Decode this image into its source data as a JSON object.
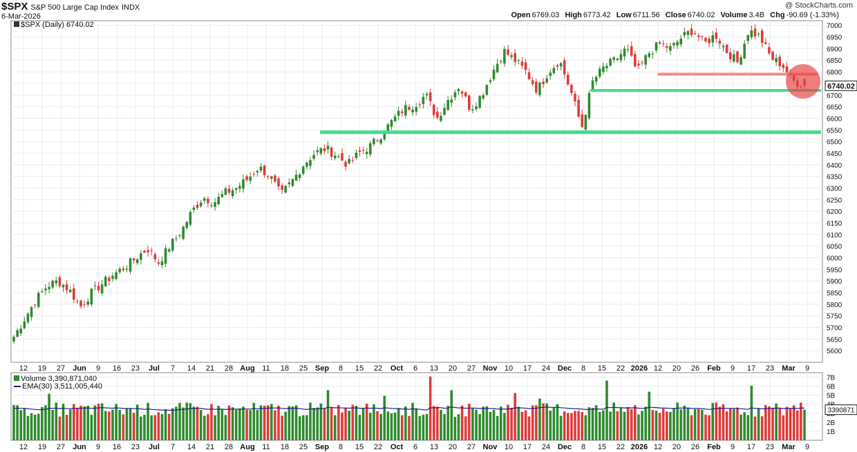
{
  "header": {
    "symbol": "$SPX",
    "name": "S&P 500 Large Cap Index",
    "exchange": "INDX",
    "date": "6-Mar-2026",
    "brand": "@ StockCharts.com",
    "open_label": "Open",
    "open": "6769.03",
    "high_label": "High",
    "high": "6773.42",
    "low_label": "Low",
    "low": "6711.56",
    "close_label": "Close",
    "close": "6740.02",
    "volume_label": "Volume",
    "volume": "3.4B",
    "chg_label": "Chg",
    "chg": "-90.69 (-1.33%)"
  },
  "price_legend": "$SPX (Daily) 6740.02",
  "price_tag": "6740.02",
  "volume_legend": "Volume 3,390,871,040",
  "ema_legend": "EMA(30) 3,511,005,440",
  "volume_tag": "3390871",
  "colors": {
    "up": "#2f8a2f",
    "down": "#e03a3a",
    "support": "#3de08a",
    "resistance": "#f08a8a",
    "ema": "#1a1a8c"
  },
  "chart_data": [
    {
      "type": "candlestick",
      "ylim": [
        5550,
        7020
      ],
      "yticks": [
        5600,
        5650,
        5700,
        5750,
        5800,
        5850,
        5900,
        5950,
        6000,
        6050,
        6100,
        6150,
        6200,
        6250,
        6300,
        6350,
        6400,
        6450,
        6500,
        6550,
        6600,
        6650,
        6700,
        6750,
        6800,
        6850,
        6900,
        6950,
        7000
      ],
      "xticks": [
        "12",
        "19",
        "27",
        "Jun",
        "9",
        "16",
        "23",
        "Jul",
        "7",
        "14",
        "21",
        "28",
        "Aug",
        "11",
        "18",
        "25",
        "Sep",
        "8",
        "15",
        "22",
        "Oct",
        "6",
        "13",
        "20",
        "27",
        "Nov",
        "10",
        "17",
        "24",
        "Dec",
        "8",
        "15",
        "22",
        "2026",
        "12",
        "20",
        "26",
        "Feb",
        "9",
        "17",
        "23",
        "Mar",
        "9"
      ],
      "close_path": [
        5660,
        5740,
        5820,
        5880,
        5900,
        5860,
        5790,
        5850,
        5890,
        5930,
        5960,
        6000,
        6040,
        5980,
        6050,
        6110,
        6200,
        6260,
        6240,
        6280,
        6300,
        6340,
        6390,
        6350,
        6270,
        6330,
        6400,
        6450,
        6470,
        6440,
        6400,
        6450,
        6480,
        6530,
        6590,
        6640,
        6660,
        6700,
        6600,
        6680,
        6740,
        6640,
        6700,
        6800,
        6890,
        6850,
        6800,
        6720,
        6800,
        6850,
        6720,
        6560,
        6760,
        6820,
        6850,
        6900,
        6800,
        6880,
        6920,
        6900,
        6950,
        6980,
        6920,
        6960,
        6890,
        6840,
        6980,
        6950,
        6860,
        6830,
        6760,
        6740
      ],
      "annotations": [
        {
          "type": "support",
          "price": 6540
        },
        {
          "type": "support",
          "price": 6720
        },
        {
          "type": "resistance",
          "price": 6790
        }
      ]
    },
    {
      "type": "bar",
      "series": [
        {
          "name": "Volume"
        },
        {
          "name": "EMA(30)"
        }
      ],
      "yticks": [
        "1B",
        "2B",
        "3B",
        "4B",
        "5B",
        "6B",
        "7B"
      ],
      "ylim": [
        0,
        7.5
      ],
      "ema_value": 3.51,
      "last_value": 3.39
    }
  ]
}
